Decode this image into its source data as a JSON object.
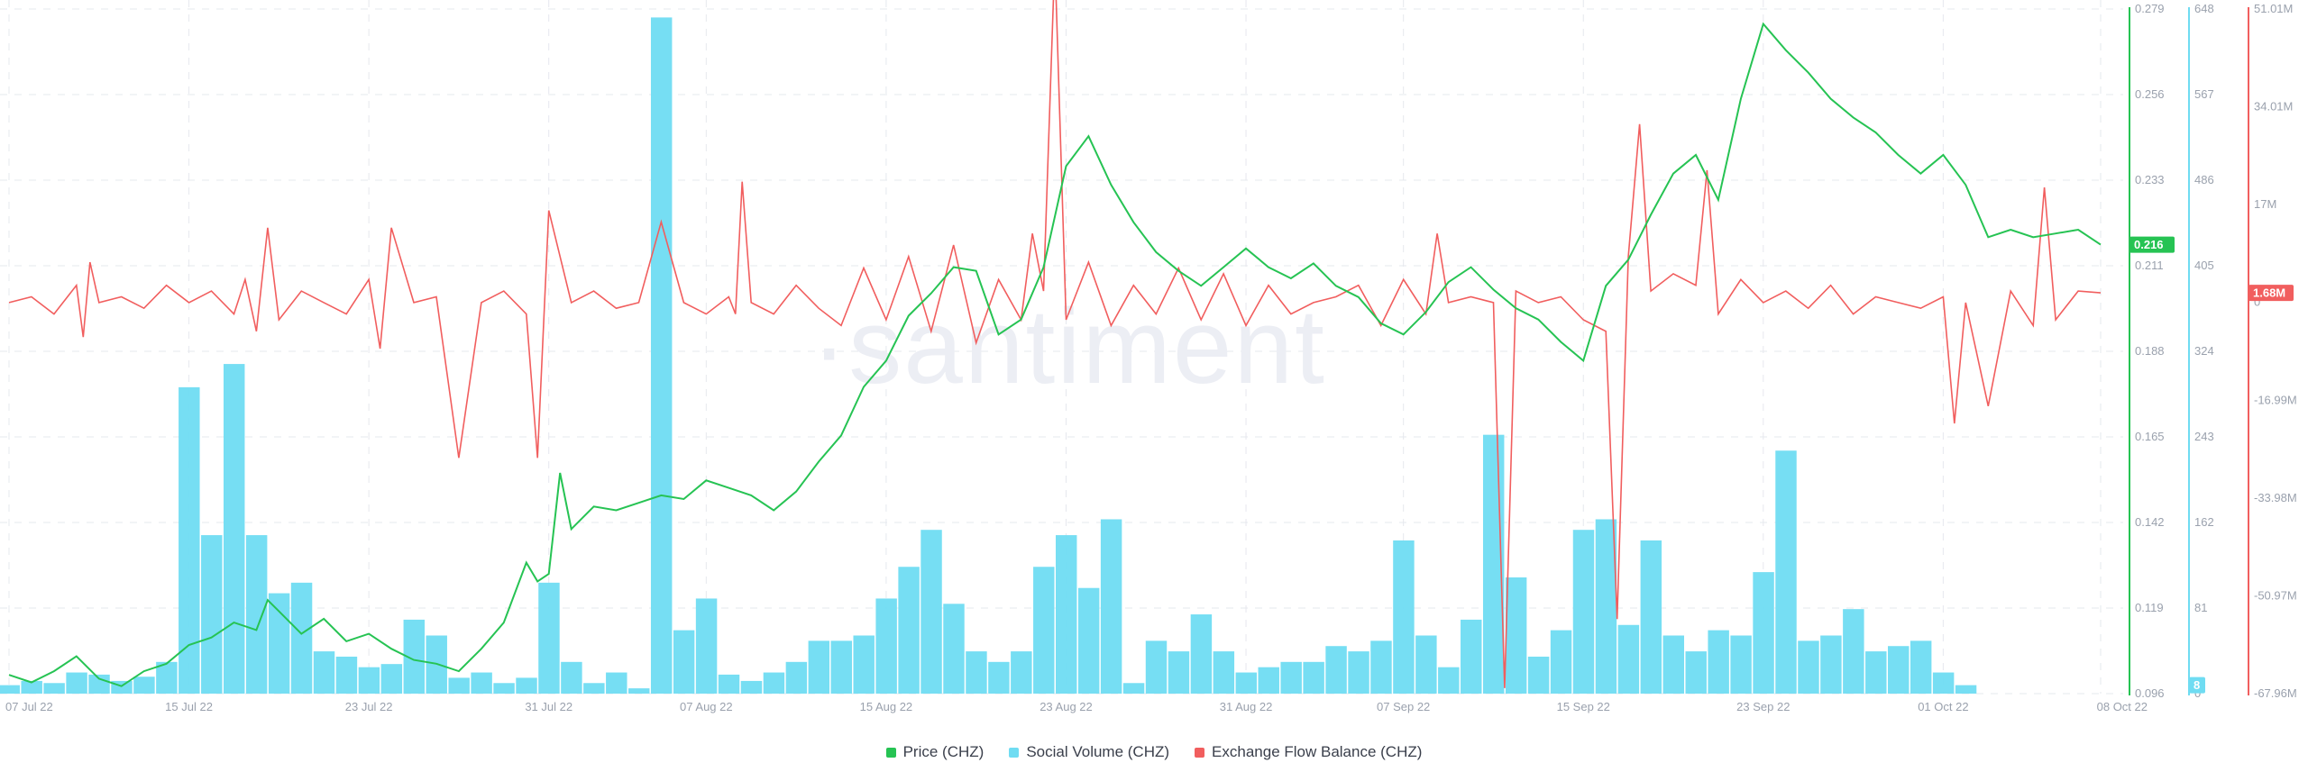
{
  "colors": {
    "price": "#26c353",
    "social": "#6fdcf2",
    "flow": "#f15e5e",
    "axis_text": "#9aa1ad",
    "grid": "#e6e8ee"
  },
  "watermark": "·santiment",
  "legend": [
    {
      "label": "Price (CHZ)",
      "color": "#26c353"
    },
    {
      "label": "Social Volume (CHZ)",
      "color": "#6fdcf2"
    },
    {
      "label": "Exchange Flow Balance (CHZ)",
      "color": "#f15e5e"
    }
  ],
  "chart_data": {
    "type": "line",
    "x": {
      "range": [
        "2022-07-07",
        "2022-10-08"
      ],
      "tick_labels": [
        "07 Jul 22",
        "15 Jul 22",
        "23 Jul 22",
        "31 Jul 22",
        "07 Aug 22",
        "15 Aug 22",
        "23 Aug 22",
        "31 Aug 22",
        "07 Sep 22",
        "15 Sep 22",
        "23 Sep 22",
        "01 Oct 22",
        "08 Oct 22"
      ],
      "tick_days": [
        0,
        8,
        16,
        24,
        31,
        39,
        47,
        55,
        62,
        70,
        78,
        86,
        93
      ]
    },
    "axes": {
      "price": {
        "ticks": [
          "0.279",
          "0.256",
          "0.233",
          "0.211",
          "0.188",
          "0.165",
          "0.142",
          "0.119",
          "0.096"
        ],
        "ylim": [
          0.096,
          0.279
        ]
      },
      "social": {
        "ticks": [
          "648",
          "567",
          "486",
          "405",
          "324",
          "243",
          "162",
          "81",
          "0"
        ],
        "ylim": [
          0,
          648
        ]
      },
      "flow": {
        "ticks": [
          "51.01M",
          "34.01M",
          "17M",
          "0",
          "-16.99M",
          "-33.98M",
          "-50.97M",
          "-67.96M"
        ],
        "ylim": [
          -67.96,
          51.01
        ],
        "unit": "M"
      }
    },
    "badges": {
      "price_last": "0.216",
      "social_last": "8",
      "flow_last": "1.68M"
    },
    "series": [
      {
        "name": "Price (CHZ)",
        "axis": "price",
        "type": "line",
        "points": [
          [
            0,
            0.101
          ],
          [
            1,
            0.099
          ],
          [
            2,
            0.102
          ],
          [
            3,
            0.106
          ],
          [
            4,
            0.1
          ],
          [
            5,
            0.098
          ],
          [
            6,
            0.102
          ],
          [
            7,
            0.104
          ],
          [
            8,
            0.109
          ],
          [
            9,
            0.111
          ],
          [
            10,
            0.115
          ],
          [
            11,
            0.113
          ],
          [
            11.5,
            0.121
          ],
          [
            12,
            0.118
          ],
          [
            13,
            0.112
          ],
          [
            14,
            0.116
          ],
          [
            15,
            0.11
          ],
          [
            16,
            0.112
          ],
          [
            17,
            0.108
          ],
          [
            18,
            0.105
          ],
          [
            19,
            0.104
          ],
          [
            20,
            0.102
          ],
          [
            21,
            0.108
          ],
          [
            22,
            0.115
          ],
          [
            23,
            0.131
          ],
          [
            23.5,
            0.126
          ],
          [
            24,
            0.128
          ],
          [
            24.5,
            0.155
          ],
          [
            25,
            0.14
          ],
          [
            26,
            0.146
          ],
          [
            27,
            0.145
          ],
          [
            28,
            0.147
          ],
          [
            29,
            0.149
          ],
          [
            30,
            0.148
          ],
          [
            31,
            0.153
          ],
          [
            32,
            0.151
          ],
          [
            33,
            0.149
          ],
          [
            34,
            0.145
          ],
          [
            35,
            0.15
          ],
          [
            36,
            0.158
          ],
          [
            37,
            0.165
          ],
          [
            38,
            0.178
          ],
          [
            39,
            0.185
          ],
          [
            40,
            0.197
          ],
          [
            41,
            0.203
          ],
          [
            42,
            0.21
          ],
          [
            43,
            0.209
          ],
          [
            44,
            0.192
          ],
          [
            45,
            0.196
          ],
          [
            46,
            0.21
          ],
          [
            47,
            0.237
          ],
          [
            48,
            0.245
          ],
          [
            49,
            0.232
          ],
          [
            50,
            0.222
          ],
          [
            51,
            0.214
          ],
          [
            52,
            0.209
          ],
          [
            53,
            0.205
          ],
          [
            54,
            0.21
          ],
          [
            55,
            0.215
          ],
          [
            56,
            0.21
          ],
          [
            57,
            0.207
          ],
          [
            58,
            0.211
          ],
          [
            59,
            0.205
          ],
          [
            60,
            0.202
          ],
          [
            61,
            0.195
          ],
          [
            62,
            0.192
          ],
          [
            63,
            0.198
          ],
          [
            64,
            0.206
          ],
          [
            65,
            0.21
          ],
          [
            66,
            0.204
          ],
          [
            67,
            0.199
          ],
          [
            68,
            0.196
          ],
          [
            69,
            0.19
          ],
          [
            70,
            0.185
          ],
          [
            71,
            0.205
          ],
          [
            72,
            0.212
          ],
          [
            73,
            0.224
          ],
          [
            74,
            0.235
          ],
          [
            75,
            0.24
          ],
          [
            76,
            0.228
          ],
          [
            77,
            0.255
          ],
          [
            78,
            0.275
          ],
          [
            79,
            0.268
          ],
          [
            80,
            0.262
          ],
          [
            81,
            0.255
          ],
          [
            82,
            0.25
          ],
          [
            83,
            0.246
          ],
          [
            84,
            0.24
          ],
          [
            85,
            0.235
          ],
          [
            86,
            0.24
          ],
          [
            87,
            0.232
          ],
          [
            88,
            0.218
          ],
          [
            89,
            0.22
          ],
          [
            90,
            0.218
          ],
          [
            91,
            0.219
          ],
          [
            92,
            0.22
          ],
          [
            93,
            0.216
          ]
        ]
      },
      {
        "name": "Social Volume (CHZ)",
        "axis": "social",
        "type": "bar",
        "points": [
          [
            0,
            8
          ],
          [
            1,
            12
          ],
          [
            2,
            10
          ],
          [
            3,
            20
          ],
          [
            4,
            18
          ],
          [
            5,
            12
          ],
          [
            6,
            16
          ],
          [
            7,
            30
          ],
          [
            8,
            290
          ],
          [
            9,
            150
          ],
          [
            10,
            312
          ],
          [
            11,
            150
          ],
          [
            12,
            95
          ],
          [
            13,
            105
          ],
          [
            14,
            40
          ],
          [
            15,
            35
          ],
          [
            16,
            25
          ],
          [
            17,
            28
          ],
          [
            18,
            70
          ],
          [
            19,
            55
          ],
          [
            20,
            15
          ],
          [
            21,
            20
          ],
          [
            22,
            10
          ],
          [
            23,
            15
          ],
          [
            24,
            105
          ],
          [
            25,
            30
          ],
          [
            26,
            10
          ],
          [
            27,
            20
          ],
          [
            28,
            5
          ],
          [
            29,
            640
          ],
          [
            30,
            60
          ],
          [
            31,
            90
          ],
          [
            32,
            18
          ],
          [
            33,
            12
          ],
          [
            34,
            20
          ],
          [
            35,
            30
          ],
          [
            36,
            50
          ],
          [
            37,
            50
          ],
          [
            38,
            55
          ],
          [
            39,
            90
          ],
          [
            40,
            120
          ],
          [
            41,
            155
          ],
          [
            42,
            85
          ],
          [
            43,
            40
          ],
          [
            44,
            30
          ],
          [
            45,
            40
          ],
          [
            46,
            120
          ],
          [
            47,
            150
          ],
          [
            48,
            100
          ],
          [
            49,
            165
          ],
          [
            50,
            10
          ],
          [
            51,
            50
          ],
          [
            52,
            40
          ],
          [
            53,
            75
          ],
          [
            54,
            40
          ],
          [
            55,
            20
          ],
          [
            56,
            25
          ],
          [
            57,
            30
          ],
          [
            58,
            30
          ],
          [
            59,
            45
          ],
          [
            60,
            40
          ],
          [
            61,
            50
          ],
          [
            62,
            145
          ],
          [
            63,
            55
          ],
          [
            64,
            25
          ],
          [
            65,
            70
          ],
          [
            66,
            245
          ],
          [
            67,
            110
          ],
          [
            68,
            35
          ],
          [
            69,
            60
          ],
          [
            70,
            155
          ],
          [
            71,
            165
          ],
          [
            72,
            65
          ],
          [
            73,
            145
          ],
          [
            74,
            55
          ],
          [
            75,
            40
          ],
          [
            76,
            60
          ],
          [
            77,
            55
          ],
          [
            78,
            115
          ],
          [
            79,
            230
          ],
          [
            80,
            50
          ],
          [
            81,
            55
          ],
          [
            82,
            80
          ],
          [
            83,
            40
          ],
          [
            84,
            45
          ],
          [
            85,
            50
          ],
          [
            86,
            20
          ],
          [
            87,
            8
          ]
        ]
      },
      {
        "name": "Exchange Flow Balance (CHZ)",
        "axis": "flow",
        "type": "line",
        "points": [
          [
            0,
            0
          ],
          [
            1,
            1
          ],
          [
            2,
            -2
          ],
          [
            3,
            3
          ],
          [
            3.3,
            -6
          ],
          [
            3.6,
            7
          ],
          [
            4,
            0
          ],
          [
            5,
            1
          ],
          [
            6,
            -1
          ],
          [
            7,
            3
          ],
          [
            8,
            0
          ],
          [
            9,
            2
          ],
          [
            10,
            -2
          ],
          [
            10.5,
            4
          ],
          [
            11,
            -5
          ],
          [
            11.5,
            13
          ],
          [
            12,
            -3
          ],
          [
            13,
            2
          ],
          [
            14,
            0
          ],
          [
            15,
            -2
          ],
          [
            16,
            4
          ],
          [
            16.5,
            -8
          ],
          [
            17,
            13
          ],
          [
            18,
            0
          ],
          [
            19,
            1
          ],
          [
            20,
            -27
          ],
          [
            21,
            0
          ],
          [
            22,
            2
          ],
          [
            23,
            -2
          ],
          [
            23.5,
            -27
          ],
          [
            24,
            16
          ],
          [
            25,
            0
          ],
          [
            26,
            2
          ],
          [
            27,
            -1
          ],
          [
            28,
            0
          ],
          [
            29,
            14
          ],
          [
            30,
            0
          ],
          [
            31,
            -2
          ],
          [
            32,
            1
          ],
          [
            32.3,
            -2
          ],
          [
            32.6,
            21
          ],
          [
            33,
            0
          ],
          [
            34,
            -2
          ],
          [
            35,
            3
          ],
          [
            36,
            -1
          ],
          [
            37,
            -4
          ],
          [
            38,
            6
          ],
          [
            39,
            -3
          ],
          [
            40,
            8
          ],
          [
            41,
            -5
          ],
          [
            42,
            10
          ],
          [
            43,
            -7
          ],
          [
            44,
            4
          ],
          [
            45,
            -3
          ],
          [
            45.5,
            12
          ],
          [
            46,
            2
          ],
          [
            46.5,
            60
          ],
          [
            47,
            -3
          ],
          [
            48,
            7
          ],
          [
            49,
            -4
          ],
          [
            50,
            3
          ],
          [
            51,
            -2
          ],
          [
            52,
            6
          ],
          [
            53,
            -3
          ],
          [
            54,
            5
          ],
          [
            55,
            -4
          ],
          [
            56,
            3
          ],
          [
            57,
            -2
          ],
          [
            58,
            0
          ],
          [
            59,
            1
          ],
          [
            60,
            3
          ],
          [
            61,
            -4
          ],
          [
            62,
            4
          ],
          [
            63,
            -2
          ],
          [
            63.5,
            12
          ],
          [
            64,
            0
          ],
          [
            65,
            1
          ],
          [
            66,
            0
          ],
          [
            66.5,
            -67
          ],
          [
            67,
            2
          ],
          [
            68,
            0
          ],
          [
            69,
            1
          ],
          [
            70,
            -3
          ],
          [
            71,
            -5
          ],
          [
            71.5,
            -55
          ],
          [
            72,
            8
          ],
          [
            72.5,
            31
          ],
          [
            73,
            2
          ],
          [
            74,
            5
          ],
          [
            75,
            3
          ],
          [
            75.5,
            23
          ],
          [
            76,
            -2
          ],
          [
            77,
            4
          ],
          [
            78,
            0
          ],
          [
            79,
            2
          ],
          [
            80,
            -1
          ],
          [
            81,
            3
          ],
          [
            82,
            -2
          ],
          [
            83,
            1
          ],
          [
            84,
            0
          ],
          [
            85,
            -1
          ],
          [
            86,
            1
          ],
          [
            86.5,
            -21
          ],
          [
            87,
            0
          ],
          [
            88,
            -18
          ],
          [
            89,
            2
          ],
          [
            90,
            -4
          ],
          [
            90.5,
            20
          ],
          [
            91,
            -3
          ],
          [
            92,
            2
          ],
          [
            93,
            1.68
          ]
        ]
      }
    ]
  }
}
